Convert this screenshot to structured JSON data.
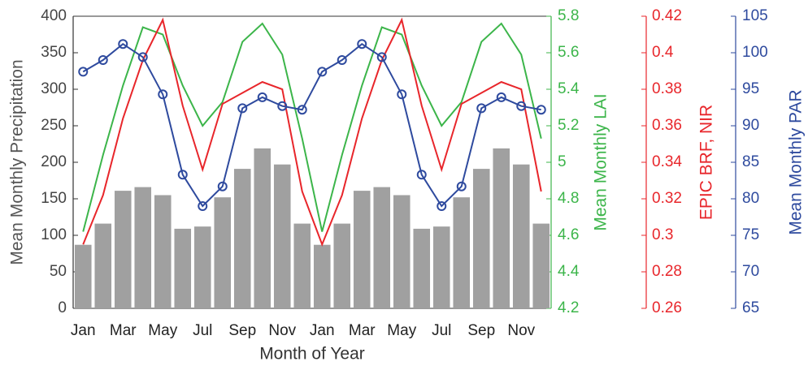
{
  "chart_data": {
    "type": "combo",
    "xlabel": "Month of Year",
    "ylabel": "Mean Monthly Precipitation",
    "y2label": "Mean Monthly LAI",
    "y3label": "EPIC BRF, NIR",
    "y4label": "Mean Monthly PAR",
    "categories": [
      "Jan",
      null,
      "Mar",
      null,
      "May",
      null,
      "Jul",
      null,
      "Sep",
      null,
      "Nov",
      null,
      "Jan",
      null,
      "Mar",
      null,
      "May",
      null,
      "Jul",
      null,
      "Sep",
      null,
      "Nov",
      null
    ],
    "ylim": [
      0,
      400
    ],
    "yticks": [
      0,
      50,
      100,
      150,
      200,
      250,
      300,
      350,
      400
    ],
    "y2lim": [
      4.2,
      5.8
    ],
    "y2ticks": [
      4.2,
      4.4,
      4.6,
      4.8,
      5,
      5.2,
      5.4,
      5.6,
      5.8
    ],
    "y3lim": [
      0.26,
      0.42
    ],
    "y3ticks": [
      0.26,
      0.28,
      0.3,
      0.32,
      0.34,
      0.36,
      0.38,
      0.4,
      0.42
    ],
    "y4lim": [
      65,
      105
    ],
    "y4ticks": [
      65,
      70,
      75,
      80,
      85,
      90,
      95,
      100,
      105
    ],
    "series": [
      {
        "type": "bar",
        "axis": "y",
        "color": "#a0a0a0",
        "values": [
          87,
          116,
          161,
          166,
          155,
          109,
          112,
          152,
          191,
          219,
          197,
          116,
          87,
          116,
          161,
          166,
          155,
          109,
          112,
          152,
          191,
          219,
          197,
          116
        ]
      },
      {
        "type": "line",
        "axis": "y2",
        "color": "#3cb54a",
        "values": [
          4.62,
          5.04,
          5.42,
          5.74,
          5.7,
          5.42,
          5.2,
          5.33,
          5.66,
          5.76,
          5.59,
          5.13,
          4.62,
          5.04,
          5.42,
          5.74,
          5.7,
          5.42,
          5.2,
          5.33,
          5.66,
          5.76,
          5.59,
          5.13
        ]
      },
      {
        "type": "line",
        "axis": "y3",
        "color": "#e8262b",
        "values": [
          0.295,
          0.322,
          0.364,
          0.396,
          0.418,
          0.371,
          0.336,
          0.372,
          0.378,
          0.384,
          0.38,
          0.324,
          0.295,
          0.322,
          0.364,
          0.396,
          0.418,
          0.371,
          0.336,
          0.372,
          0.378,
          0.384,
          0.38,
          0.324
        ]
      },
      {
        "type": "line-marker",
        "axis": "y4",
        "color": "#2e4a9e",
        "values": [
          97.4,
          99,
          101.2,
          99.4,
          94.3,
          83.3,
          79,
          81.7,
          92.4,
          93.9,
          92.7,
          92.2,
          97.4,
          99,
          101.2,
          99.4,
          94.3,
          83.3,
          79,
          81.7,
          92.4,
          93.9,
          92.7,
          92.2
        ]
      }
    ]
  }
}
